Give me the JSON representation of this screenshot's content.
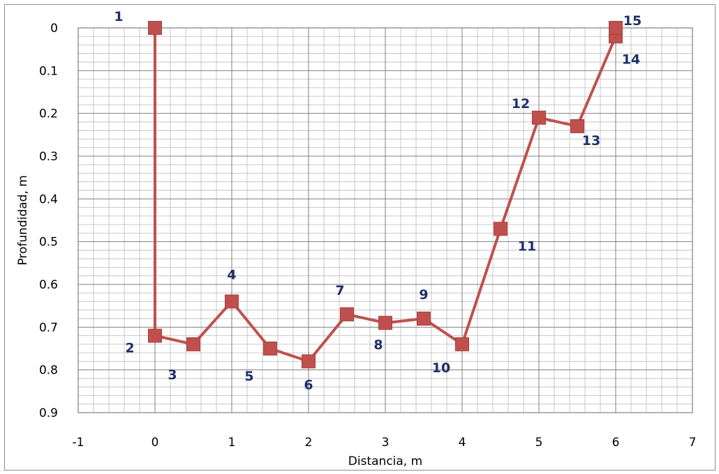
{
  "chart_data": {
    "type": "scatter",
    "xlabel": "Distancia, m",
    "ylabel": "Profundidad, m",
    "xlim": [
      -1,
      7
    ],
    "ylim": [
      0,
      0.9
    ],
    "y_inverted": true,
    "x_ticks": [
      "-1",
      "0",
      "1",
      "2",
      "3",
      "4",
      "5",
      "6",
      "7"
    ],
    "y_ticks": [
      "0",
      "0.1",
      "0.2",
      "0.3",
      "0.4",
      "0.5",
      "0.6",
      "0.7",
      "0.8",
      "0.9"
    ],
    "grid": true,
    "legend": "none",
    "series_color": "#c0504d",
    "label_color": "#1f2f6b",
    "points": [
      {
        "label": "1",
        "x": 0,
        "y": 0
      },
      {
        "label": "2",
        "x": 0,
        "y": 0.72
      },
      {
        "label": "3",
        "x": 0.5,
        "y": 0.74
      },
      {
        "label": "4",
        "x": 1,
        "y": 0.64
      },
      {
        "label": "5",
        "x": 1.5,
        "y": 0.75
      },
      {
        "label": "6",
        "x": 2,
        "y": 0.78
      },
      {
        "label": "7",
        "x": 2.5,
        "y": 0.67
      },
      {
        "label": "8",
        "x": 3,
        "y": 0.69
      },
      {
        "label": "9",
        "x": 3.5,
        "y": 0.68
      },
      {
        "label": "10",
        "x": 4,
        "y": 0.74
      },
      {
        "label": "11",
        "x": 4.5,
        "y": 0.47
      },
      {
        "label": "12",
        "x": 5,
        "y": 0.21
      },
      {
        "label": "13",
        "x": 5.5,
        "y": 0.23
      },
      {
        "label": "14",
        "x": 6,
        "y": 0.02
      },
      {
        "label": "15",
        "x": 6,
        "y": 0
      }
    ]
  }
}
